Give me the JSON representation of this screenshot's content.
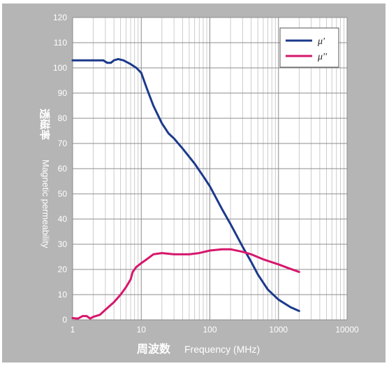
{
  "chart_data": {
    "type": "line",
    "xlabel_cn": "周波数",
    "xlabel_en": "Frequency (MHz)",
    "ylabel_cn": "透磁率",
    "ylabel_en": "Magnetic permeability",
    "x_scale": "log",
    "xlim": [
      1,
      10000
    ],
    "ylim": [
      0,
      120
    ],
    "x_ticks": [
      "1",
      "10",
      "100",
      "1000",
      "10000"
    ],
    "y_ticks": [
      "0",
      "10",
      "20",
      "30",
      "40",
      "50",
      "60",
      "70",
      "80",
      "90",
      "100",
      "110",
      "120"
    ],
    "grid": true,
    "legend_position": "top-right",
    "series": [
      {
        "name": "μ'",
        "color": "#1b3a8c",
        "points": [
          [
            1,
            103
          ],
          [
            2,
            103
          ],
          [
            2.8,
            103
          ],
          [
            3.2,
            102
          ],
          [
            3.6,
            102
          ],
          [
            4,
            103
          ],
          [
            4.6,
            103.5
          ],
          [
            5.5,
            103
          ],
          [
            7,
            101.5
          ],
          [
            8.5,
            100
          ],
          [
            10,
            98
          ],
          [
            12,
            92
          ],
          [
            15,
            85
          ],
          [
            20,
            78
          ],
          [
            25,
            74
          ],
          [
            30,
            72
          ],
          [
            40,
            68
          ],
          [
            60,
            62
          ],
          [
            80,
            57
          ],
          [
            100,
            53
          ],
          [
            150,
            44
          ],
          [
            200,
            38
          ],
          [
            300,
            29
          ],
          [
            400,
            23
          ],
          [
            500,
            18
          ],
          [
            700,
            12
          ],
          [
            1000,
            8
          ],
          [
            1500,
            5
          ],
          [
            2000,
            3.5
          ]
        ]
      },
      {
        "name": "μ''",
        "color": "#d6176c",
        "points": [
          [
            1,
            0.7
          ],
          [
            1.2,
            0.5
          ],
          [
            1.4,
            1.5
          ],
          [
            1.6,
            1.5
          ],
          [
            1.8,
            0.5
          ],
          [
            2,
            1.2
          ],
          [
            2.5,
            2
          ],
          [
            3,
            4
          ],
          [
            4,
            7
          ],
          [
            5,
            10
          ],
          [
            6,
            13
          ],
          [
            7,
            16
          ],
          [
            7.5,
            19
          ],
          [
            8.5,
            21
          ],
          [
            10,
            22.5
          ],
          [
            12,
            24
          ],
          [
            15,
            26
          ],
          [
            20,
            26.5
          ],
          [
            30,
            26
          ],
          [
            50,
            26
          ],
          [
            70,
            26.5
          ],
          [
            100,
            27.5
          ],
          [
            150,
            28
          ],
          [
            200,
            28
          ],
          [
            300,
            27
          ],
          [
            400,
            26
          ],
          [
            600,
            24
          ],
          [
            1000,
            22
          ],
          [
            1400,
            20.5
          ],
          [
            2000,
            19
          ]
        ]
      }
    ]
  }
}
